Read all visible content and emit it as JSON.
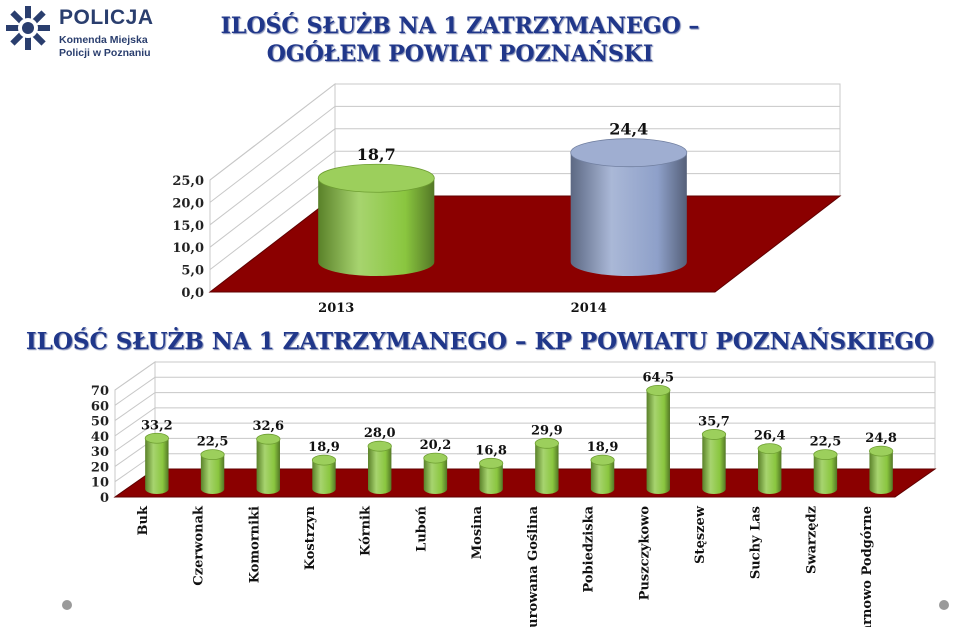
{
  "logo": {
    "name": "POLICJA",
    "line1": "Komenda Miejska",
    "line2": "Policji w Poznaniu"
  },
  "titles": {
    "top_line1": "ILOŚĆ SŁUŻB NA 1 ZATRZYMANEGO –",
    "top_line2": "OGÓŁEM POWIAT POZNAŃSKI",
    "bottom": "ILOŚĆ SŁUŻB NA 1 ZATRZYMANEGO – KP POWIATU POZNAŃSKIEGO"
  },
  "colors": {
    "title": "#20378a",
    "floor": "#8b0000",
    "green": "#8ac63f",
    "blue": "#8ea0c9"
  },
  "chart_data": [
    {
      "type": "bar",
      "categories": [
        "2013",
        "2014"
      ],
      "values": [
        18.7,
        24.4
      ],
      "labels": [
        "18,7",
        "24,4"
      ],
      "ylim": [
        0,
        25
      ],
      "yticks": [
        "0,0",
        "5,0",
        "10,0",
        "15,0",
        "20,0",
        "25,0"
      ],
      "ytick_values": [
        0,
        5,
        10,
        15,
        20,
        25
      ],
      "bar_colors": [
        "#8ac63f",
        "#8ea0c9"
      ],
      "grid": true
    },
    {
      "type": "bar",
      "categories": [
        "Buk",
        "Czerwonak",
        "Komorniki",
        "Kostrzyn",
        "Kórnik",
        "Luboń",
        "Mosina",
        "Murowana Goślina",
        "Pobiedziska",
        "Puszczykowo",
        "Stęszew",
        "Suchy Las",
        "Swarzędz",
        "Tarnowo Podgórne"
      ],
      "values": [
        33.2,
        22.5,
        32.6,
        18.9,
        28.0,
        20.2,
        16.8,
        29.9,
        18.9,
        64.5,
        35.7,
        26.4,
        22.5,
        24.8
      ],
      "labels": [
        "33,2",
        "22,5",
        "32,6",
        "18,9",
        "28,0",
        "20,2",
        "16,8",
        "29,9",
        "18,9",
        "64,5",
        "35,7",
        "26,4",
        "22,5",
        "24,8"
      ],
      "ylim": [
        0,
        70
      ],
      "yticks": [
        "0",
        "10",
        "20",
        "30",
        "40",
        "50",
        "60",
        "70"
      ],
      "ytick_values": [
        0,
        10,
        20,
        30,
        40,
        50,
        60,
        70
      ],
      "bar_color": "#8ac63f",
      "grid": true
    }
  ]
}
